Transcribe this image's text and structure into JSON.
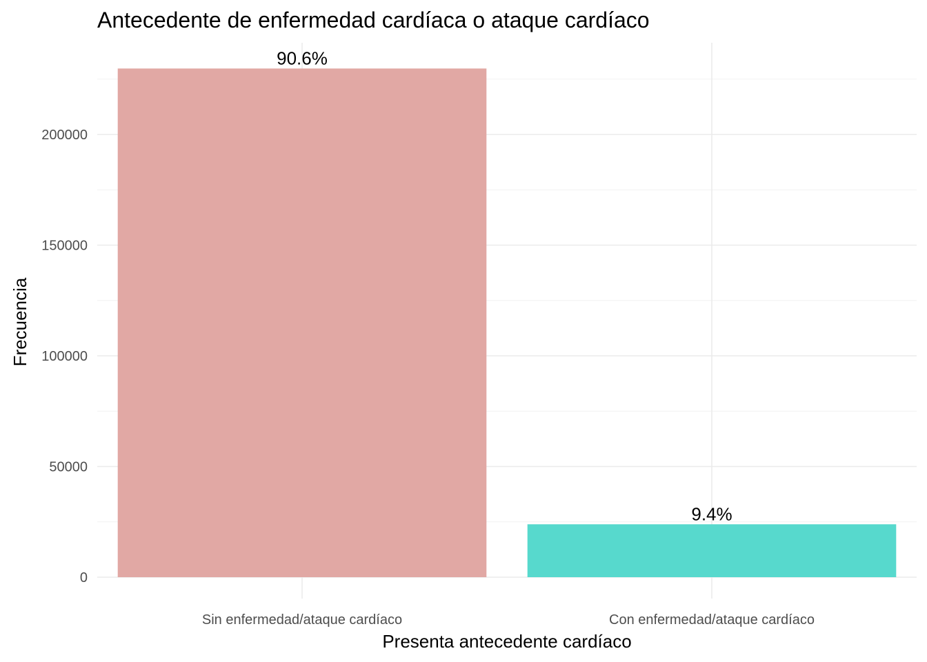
{
  "chart_data": {
    "type": "bar",
    "title": "Antecedente de enfermedad cardíaca o ataque cardíaco",
    "xlabel": "Presenta antecedente cardíaco",
    "ylabel": "Frecuencia",
    "categories": [
      "Sin enfermedad/ataque cardíaco",
      "Con enfermedad/ataque cardíaco"
    ],
    "values": [
      229800,
      23900
    ],
    "labels": [
      "90.6%",
      "9.4%"
    ],
    "colors": [
      "#e1a8a4",
      "#57d9cd"
    ],
    "ylim": [
      0,
      241000
    ],
    "yticks": [
      0,
      50000,
      100000,
      150000,
      200000
    ],
    "ytick_labels": [
      "0",
      "50000",
      "100000",
      "150000",
      "200000"
    ],
    "grid": true,
    "legend": "none"
  }
}
